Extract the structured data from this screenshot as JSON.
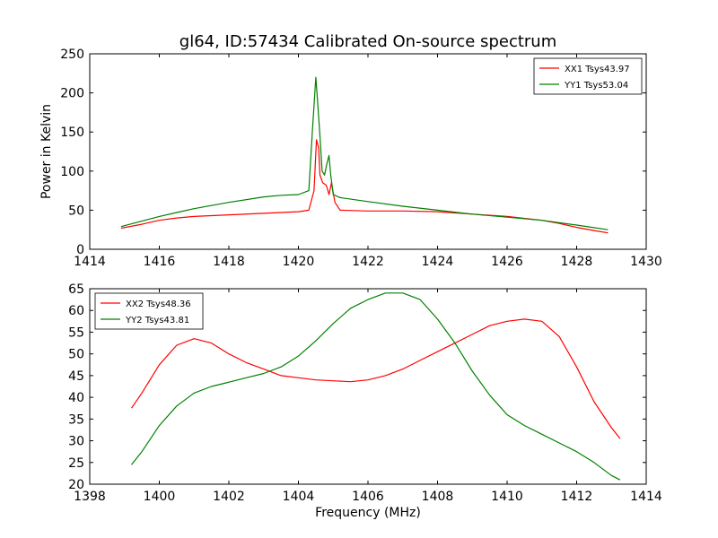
{
  "chart_data": [
    {
      "type": "line",
      "title": "gl64, ID:57434 Calibrated On-source spectrum",
      "xlabel": "",
      "ylabel": "Power in Kelvin",
      "xlim": [
        1414,
        1430
      ],
      "ylim": [
        0,
        250
      ],
      "xticks": [
        1414,
        1416,
        1418,
        1420,
        1422,
        1424,
        1426,
        1428,
        1430
      ],
      "yticks": [
        0,
        50,
        100,
        150,
        200,
        250
      ],
      "grid": false,
      "legend_position": "top-right",
      "series": [
        {
          "name": "XX1 Tsys43.97",
          "color": "#ff0000",
          "x": [
            1414.9,
            1415.5,
            1416.0,
            1416.5,
            1417.0,
            1418.0,
            1419.0,
            1420.0,
            1420.3,
            1420.45,
            1420.52,
            1420.58,
            1420.62,
            1420.7,
            1420.8,
            1420.88,
            1420.95,
            1421.05,
            1421.2,
            1422.0,
            1423.0,
            1424.0,
            1425.0,
            1426.0,
            1427.0,
            1427.5,
            1428.0,
            1428.5,
            1428.9
          ],
          "y": [
            27,
            32,
            37,
            40,
            42,
            44,
            46,
            48,
            50,
            75,
            140,
            130,
            95,
            85,
            82,
            70,
            85,
            60,
            50,
            49,
            49,
            48,
            45,
            42,
            37,
            33,
            28,
            24,
            21
          ]
        },
        {
          "name": "YY1 Tsys53.04",
          "color": "#008000",
          "x": [
            1414.9,
            1415.5,
            1416.0,
            1416.5,
            1417.0,
            1418.0,
            1419.0,
            1419.5,
            1420.0,
            1420.3,
            1420.4,
            1420.5,
            1420.55,
            1420.62,
            1420.68,
            1420.75,
            1420.82,
            1420.88,
            1420.93,
            1421.0,
            1421.2,
            1422.0,
            1423.0,
            1424.0,
            1425.0,
            1426.0,
            1427.0,
            1428.0,
            1428.9
          ],
          "y": [
            29,
            36,
            42,
            47,
            52,
            60,
            67,
            69,
            70,
            75,
            150,
            220,
            190,
            145,
            100,
            95,
            110,
            120,
            95,
            70,
            66,
            61,
            55,
            50,
            45,
            41,
            37,
            31,
            25
          ]
        }
      ]
    },
    {
      "type": "line",
      "title": "",
      "xlabel": "Frequency (MHz)",
      "ylabel": "",
      "xlim": [
        1398,
        1414
      ],
      "ylim": [
        20,
        65
      ],
      "xticks": [
        1398,
        1400,
        1402,
        1404,
        1406,
        1408,
        1410,
        1412,
        1414
      ],
      "yticks": [
        20,
        25,
        30,
        35,
        40,
        45,
        50,
        55,
        60,
        65
      ],
      "grid": false,
      "legend_position": "top-left",
      "series": [
        {
          "name": "XX2 Tsys48.36",
          "color": "#ff0000",
          "x": [
            1399.2,
            1399.5,
            1400.0,
            1400.5,
            1401.0,
            1401.5,
            1402.0,
            1402.5,
            1403.0,
            1403.5,
            1404.0,
            1404.5,
            1405.0,
            1405.5,
            1406.0,
            1406.5,
            1407.0,
            1407.5,
            1408.0,
            1408.5,
            1409.0,
            1409.5,
            1410.0,
            1410.5,
            1411.0,
            1411.5,
            1412.0,
            1412.5,
            1413.0,
            1413.25
          ],
          "y": [
            37.5,
            41,
            47.5,
            52,
            53.5,
            52.5,
            50,
            48,
            46.5,
            45,
            44.5,
            44,
            43.8,
            43.6,
            44,
            45,
            46.5,
            48.5,
            50.5,
            52.5,
            54.5,
            56.5,
            57.5,
            58,
            57.5,
            54,
            47,
            39,
            33,
            30.5
          ]
        },
        {
          "name": "YY2 Tsys43.81",
          "color": "#008000",
          "x": [
            1399.2,
            1399.5,
            1400.0,
            1400.5,
            1401.0,
            1401.5,
            1402.0,
            1402.5,
            1403.0,
            1403.5,
            1404.0,
            1404.5,
            1405.0,
            1405.5,
            1406.0,
            1406.5,
            1407.0,
            1407.5,
            1408.0,
            1408.5,
            1409.0,
            1409.5,
            1410.0,
            1410.5,
            1411.0,
            1411.5,
            1412.0,
            1412.5,
            1413.0,
            1413.25
          ],
          "y": [
            24.5,
            27.5,
            33.5,
            38,
            41,
            42.5,
            43.5,
            44.5,
            45.5,
            47,
            49.5,
            53,
            57,
            60.5,
            62.5,
            64,
            64,
            62.5,
            58,
            52.5,
            46,
            40.5,
            36,
            33.5,
            31.5,
            29.5,
            27.5,
            25,
            22,
            21
          ]
        }
      ]
    }
  ]
}
